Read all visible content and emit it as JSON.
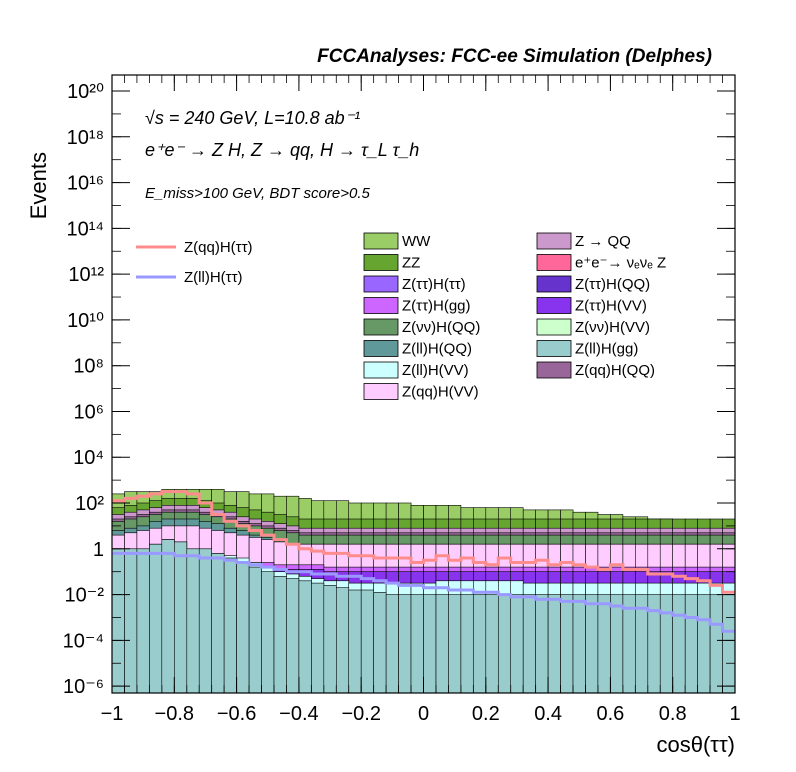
{
  "header": {
    "title": "FCCAnalyses: FCC-ee Simulation (Delphes)"
  },
  "annotations": {
    "energy_line": "√s = 240 GeV, L=10.8 ab⁻¹",
    "process_line": "e⁺e⁻ → Z H, Z → qq, H → τ_L τ_h",
    "cuts_line": "E_miss>100 GeV, BDT score>0.5"
  },
  "colors": {
    "frame": "#000000",
    "signal_qq": "#ff8c8c",
    "signal_ll": "#9999ff"
  },
  "chart_data": {
    "type": "bar",
    "subtype": "stacked-histogram-log",
    "xlabel": "cosθ(ττ)",
    "ylabel": "Events",
    "xlim": [
      -1,
      1
    ],
    "ylim_log10": [
      -6.3,
      20.7
    ],
    "y_scale": "log",
    "x_ticks": [
      "−1",
      "−0.8",
      "−0.6",
      "−0.4",
      "−0.2",
      "0",
      "0.2",
      "0.4",
      "0.6",
      "0.8",
      "1"
    ],
    "x_tick_values": [
      -1,
      -0.8,
      -0.6,
      -0.4,
      -0.2,
      0,
      0.2,
      0.4,
      0.6,
      0.8,
      1
    ],
    "y_tick_exponents": [
      -6,
      -4,
      -2,
      0,
      2,
      4,
      6,
      8,
      10,
      12,
      14,
      16,
      18,
      20
    ],
    "y_tick_labels": [
      "10⁻⁶",
      "10⁻⁴",
      "10⁻²",
      "1",
      "10²",
      "10⁴",
      "10⁶",
      "10⁸",
      "10¹⁰",
      "10¹²",
      "10¹⁴",
      "10¹⁶",
      "10¹⁸",
      "10²⁰"
    ],
    "legend_placement": "upper",
    "signal_legend": [
      {
        "name": "Z(qq)H(ττ)",
        "color": "#ff8c8c"
      },
      {
        "name": "Z(ll)H(ττ)",
        "color": "#9999ff"
      }
    ],
    "background_legend": [
      {
        "name": "WW",
        "color": "#9acd65"
      },
      {
        "name": "Z → QQ",
        "color": "#cc99cc"
      },
      {
        "name": "ZZ",
        "color": "#66a630"
      },
      {
        "name": "e⁺e⁻→ νₑνₑ Z",
        "color": "#ff6699"
      },
      {
        "name": "Z(ττ)H(ττ)",
        "color": "#9966ff"
      },
      {
        "name": "Z(ττ)H(QQ)",
        "color": "#6633cc"
      },
      {
        "name": "Z(ττ)H(gg)",
        "color": "#cc66ff"
      },
      {
        "name": "Z(ττ)H(VV)",
        "color": "#8833ee"
      },
      {
        "name": "Z(νν)H(QQ)",
        "color": "#669966"
      },
      {
        "name": "Z(νν)H(VV)",
        "color": "#ccffcc"
      },
      {
        "name": "Z(ll)H(QQ)",
        "color": "#5f9999"
      },
      {
        "name": "Z(ll)H(gg)",
        "color": "#99cccc"
      },
      {
        "name": "Z(ll)H(VV)",
        "color": "#ccffff"
      },
      {
        "name": "Z(qq)H(QQ)",
        "color": "#996699"
      },
      {
        "name": "Z(qq)H(VV)",
        "color": "#ffccff"
      }
    ],
    "bin_width": 0.04,
    "bin_centers": [
      -0.98,
      -0.94,
      -0.9,
      -0.86,
      -0.82,
      -0.78,
      -0.74,
      -0.7,
      -0.66,
      -0.62,
      -0.58,
      -0.54,
      -0.5,
      -0.46,
      -0.42,
      -0.38,
      -0.34,
      -0.3,
      -0.26,
      -0.22,
      -0.18,
      -0.14,
      -0.1,
      -0.06,
      -0.02,
      0.02,
      0.06,
      0.1,
      0.14,
      0.18,
      0.22,
      0.26,
      0.3,
      0.34,
      0.38,
      0.42,
      0.46,
      0.5,
      0.54,
      0.58,
      0.62,
      0.66,
      0.7,
      0.74,
      0.78,
      0.82,
      0.86,
      0.9,
      0.94,
      0.98
    ],
    "stack_layers_log10_top": [
      {
        "name": "Z(ll)H(gg)",
        "color": "#99cccc",
        "values": [
          0,
          0,
          0,
          0.2,
          0.4,
          0.3,
          0,
          0,
          -0.2,
          -0.4,
          -0.6,
          -0.8,
          -1,
          -1.2,
          -1.3,
          -1.4,
          -1.5,
          -1.6,
          -1.7,
          -1.8,
          -1.8,
          -1.9,
          -2,
          -2,
          -2,
          -2,
          -2,
          -2,
          -2,
          -2,
          -2,
          -2,
          -2,
          -2,
          -2,
          -2,
          -2,
          -2,
          -2,
          -2,
          -2,
          -2,
          -2,
          -2,
          -2,
          -2,
          -2,
          -2,
          -2,
          -2
        ]
      },
      {
        "name": "Z(ll)H(VV)",
        "color": "#ccffff",
        "values": [
          0,
          0,
          0,
          0.2,
          0.4,
          0.3,
          0,
          0,
          -0.2,
          -0.3,
          -0.4,
          -0.6,
          -0.8,
          -1,
          -1.1,
          -1.2,
          -1.3,
          -1.4,
          -1.4,
          -1.5,
          -1.5,
          -1.5,
          -1.5,
          -1.5,
          -1.5,
          -1.5,
          -1.4,
          -1.4,
          -1.4,
          -1.4,
          -1.4,
          -1.4,
          -1.4,
          -1.5,
          -1.5,
          -1.5,
          -1.5,
          -1.5,
          -1.5,
          -1.5,
          -1.5,
          -1.5,
          -1.5,
          -1.5,
          -1.5,
          -1.5,
          -1.5,
          -1.5,
          -1.5,
          -1.5
        ]
      },
      {
        "name": "Z(ττ)H(VV)",
        "color": "#8833ee",
        "values": [
          -0.6,
          -0.6,
          -0.5,
          -0.5,
          -0.5,
          -0.6,
          -0.6,
          -0.6,
          -0.7,
          -0.7,
          -0.8,
          -0.8,
          -0.8,
          -0.9,
          -0.9,
          -0.9,
          -0.9,
          -1,
          -1,
          -1,
          -1,
          -1,
          -1,
          -1,
          -1,
          -1,
          -1,
          -1,
          -1,
          -1,
          -1,
          -1,
          -1,
          -1,
          -1,
          -1,
          -1,
          -1,
          -1,
          -1,
          -1,
          -1,
          -1,
          -1,
          -1,
          -1,
          -1,
          -1,
          -1,
          -1
        ]
      },
      {
        "name": "Z(ττ)H(gg)",
        "color": "#cc66ff",
        "values": [
          -0.4,
          -0.4,
          -0.3,
          -0.3,
          -0.3,
          -0.4,
          -0.4,
          -0.4,
          -0.5,
          -0.5,
          -0.6,
          -0.6,
          -0.6,
          -0.7,
          -0.7,
          -0.7,
          -0.7,
          -0.8,
          -0.8,
          -0.8,
          -0.8,
          -0.8,
          -0.8,
          -0.8,
          -0.8,
          -0.8,
          -0.8,
          -0.8,
          -0.8,
          -0.8,
          -0.8,
          -0.8,
          -0.8,
          -0.8,
          -0.8,
          -0.8,
          -0.8,
          -0.8,
          -0.8,
          -0.8,
          -0.8,
          -0.8,
          -0.8,
          -0.8,
          -0.8,
          -0.8,
          -0.8,
          -0.8,
          -0.8,
          -0.8
        ]
      },
      {
        "name": "Z(qq)H(VV)",
        "color": "#ffccff",
        "values": [
          0.6,
          0.7,
          0.8,
          0.9,
          1,
          1,
          1,
          0.9,
          0.8,
          0.7,
          0.6,
          0.5,
          0.4,
          0.3,
          0.2,
          0.2,
          0.2,
          0.2,
          0.2,
          0.2,
          0.2,
          0.2,
          0.2,
          0.2,
          0.2,
          0.2,
          0.2,
          0.2,
          0.2,
          0.2,
          0.2,
          0.2,
          0.2,
          0.2,
          0.2,
          0.2,
          0.2,
          0.2,
          0.2,
          0.2,
          0.2,
          0.2,
          0.2,
          0.2,
          0.2,
          0.2,
          0.2,
          0.2,
          0.2,
          0.2
        ]
      },
      {
        "name": "Z(ll)H(QQ)",
        "color": "#5f9999",
        "values": [
          0.8,
          0.9,
          1,
          1.2,
          1.3,
          1.3,
          1.3,
          1.2,
          1.1,
          0.9,
          0.8,
          0.6,
          0.5,
          0.3,
          0.2,
          0.2,
          0.2,
          0.2,
          0.2,
          0.2,
          0.2,
          0.2,
          0.2,
          0.2,
          0.2,
          0.2,
          0.2,
          0.2,
          0.2,
          0.2,
          0.2,
          0.2,
          0.2,
          0.2,
          0.2,
          0.2,
          0.2,
          0.2,
          0.2,
          0.2,
          0.2,
          0.2,
          0.2,
          0.2,
          0.2,
          0.2,
          0.2,
          0.2,
          0.2,
          0.2
        ]
      },
      {
        "name": "Z(νν)H(QQ)",
        "color": "#669966",
        "values": [
          1.2,
          1.3,
          1.4,
          1.5,
          1.6,
          1.6,
          1.6,
          1.5,
          1.4,
          1.3,
          1.1,
          1,
          0.9,
          0.8,
          0.7,
          0.6,
          0.6,
          0.6,
          0.6,
          0.6,
          0.6,
          0.6,
          0.6,
          0.6,
          0.6,
          0.6,
          0.6,
          0.6,
          0.6,
          0.6,
          0.6,
          0.6,
          0.6,
          0.6,
          0.6,
          0.6,
          0.6,
          0.6,
          0.6,
          0.6,
          0.6,
          0.6,
          0.6,
          0.6,
          0.6,
          0.6,
          0.6,
          0.6,
          0.6,
          0.6
        ]
      },
      {
        "name": "Z(qq)H(QQ)",
        "color": "#996699",
        "values": [
          1.3,
          1.4,
          1.5,
          1.6,
          1.7,
          1.7,
          1.7,
          1.6,
          1.5,
          1.4,
          1.2,
          1.1,
          1,
          0.9,
          0.8,
          0.7,
          0.7,
          0.7,
          0.7,
          0.7,
          0.7,
          0.7,
          0.7,
          0.7,
          0.7,
          0.7,
          0.7,
          0.7,
          0.7,
          0.7,
          0.7,
          0.7,
          0.7,
          0.7,
          0.7,
          0.7,
          0.7,
          0.7,
          0.7,
          0.7,
          0.7,
          0.7,
          0.7,
          0.7,
          0.7,
          0.7,
          0.7,
          0.7,
          0.7,
          0.7
        ]
      },
      {
        "name": "Z → QQ",
        "color": "#cc99cc",
        "values": [
          1.5,
          1.6,
          1.7,
          1.8,
          1.9,
          1.9,
          1.9,
          1.8,
          1.7,
          1.6,
          1.4,
          1.3,
          1.2,
          1.1,
          1,
          0.9,
          0.9,
          0.9,
          0.9,
          0.9,
          0.9,
          0.9,
          0.9,
          0.9,
          0.9,
          0.9,
          0.9,
          0.9,
          0.9,
          0.9,
          0.9,
          0.9,
          0.9,
          0.9,
          0.9,
          0.9,
          0.9,
          0.9,
          0.9,
          0.9,
          0.9,
          0.9,
          0.9,
          0.9,
          0.9,
          0.9,
          0.9,
          0.9,
          0.9,
          0.9
        ]
      },
      {
        "name": "ZZ",
        "color": "#66a630",
        "values": [
          1.8,
          1.9,
          2,
          2.1,
          2.2,
          2.2,
          2.2,
          2.1,
          2,
          1.9,
          1.8,
          1.7,
          1.6,
          1.5,
          1.4,
          1.3,
          1.3,
          1.3,
          1.3,
          1.3,
          1.3,
          1.3,
          1.3,
          1.3,
          1.3,
          1.3,
          1.3,
          1.3,
          1.3,
          1.3,
          1.3,
          1.3,
          1.3,
          1.3,
          1.3,
          1.3,
          1.3,
          1.3,
          1.3,
          1.3,
          1.3,
          1.3,
          1.3,
          1.3,
          1.3,
          1.3,
          1.3,
          1.3,
          1.3,
          1.3
        ]
      },
      {
        "name": "WW",
        "color": "#9acd65",
        "values": [
          2.4,
          2.5,
          2.5,
          2.5,
          2.6,
          2.6,
          2.6,
          2.6,
          2.6,
          2.5,
          2.5,
          2.4,
          2.4,
          2.3,
          2.3,
          2.2,
          2.1,
          2.1,
          2.1,
          2,
          2,
          2,
          2,
          2,
          1.9,
          1.9,
          1.9,
          1.9,
          1.8,
          1.8,
          1.8,
          1.8,
          1.8,
          1.7,
          1.7,
          1.7,
          1.7,
          1.6,
          1.6,
          1.5,
          1.5,
          1.4,
          1.4,
          1.3,
          1.3,
          1.2,
          1.2,
          1.1,
          1.1,
          1
        ]
      }
    ],
    "signal_series_log10": [
      {
        "name": "Z(qq)H(ττ)",
        "color": "#ff8c8c",
        "values": [
          2.1,
          2.2,
          2.3,
          2.4,
          2.5,
          2.5,
          2.4,
          2,
          1.5,
          1.2,
          1,
          0.8,
          0.6,
          0.4,
          0.2,
          0,
          -0.1,
          -0.2,
          -0.2,
          -0.3,
          -0.3,
          -0.4,
          -0.4,
          -0.4,
          -0.6,
          -0.5,
          -0.3,
          -0.5,
          -0.4,
          -0.6,
          -0.7,
          -0.4,
          -0.6,
          -0.6,
          -0.5,
          -0.7,
          -0.6,
          -0.7,
          -0.8,
          -0.9,
          -0.7,
          -0.9,
          -0.9,
          -1.1,
          -1.1,
          -1.2,
          -1.3,
          -1.4,
          -1.6,
          -1.9
        ]
      },
      {
        "name": "Z(ll)H(ττ)",
        "color": "#9999ff",
        "values": [
          -0.2,
          -0.2,
          -0.2,
          -0.2,
          -0.2,
          -0.3,
          -0.3,
          -0.4,
          -0.4,
          -0.5,
          -0.6,
          -0.7,
          -0.8,
          -0.9,
          -1,
          -1,
          -1.1,
          -1.1,
          -1.2,
          -1.2,
          -1.3,
          -1.4,
          -1.5,
          -1.6,
          -1.6,
          -1.7,
          -1.7,
          -1.8,
          -1.8,
          -1.9,
          -1.9,
          -2,
          -2.1,
          -2.1,
          -2.2,
          -2.2,
          -2.3,
          -2.3,
          -2.4,
          -2.4,
          -2.5,
          -2.6,
          -2.6,
          -2.7,
          -2.8,
          -2.9,
          -3,
          -3.1,
          -3.3,
          -3.6
        ]
      }
    ]
  }
}
